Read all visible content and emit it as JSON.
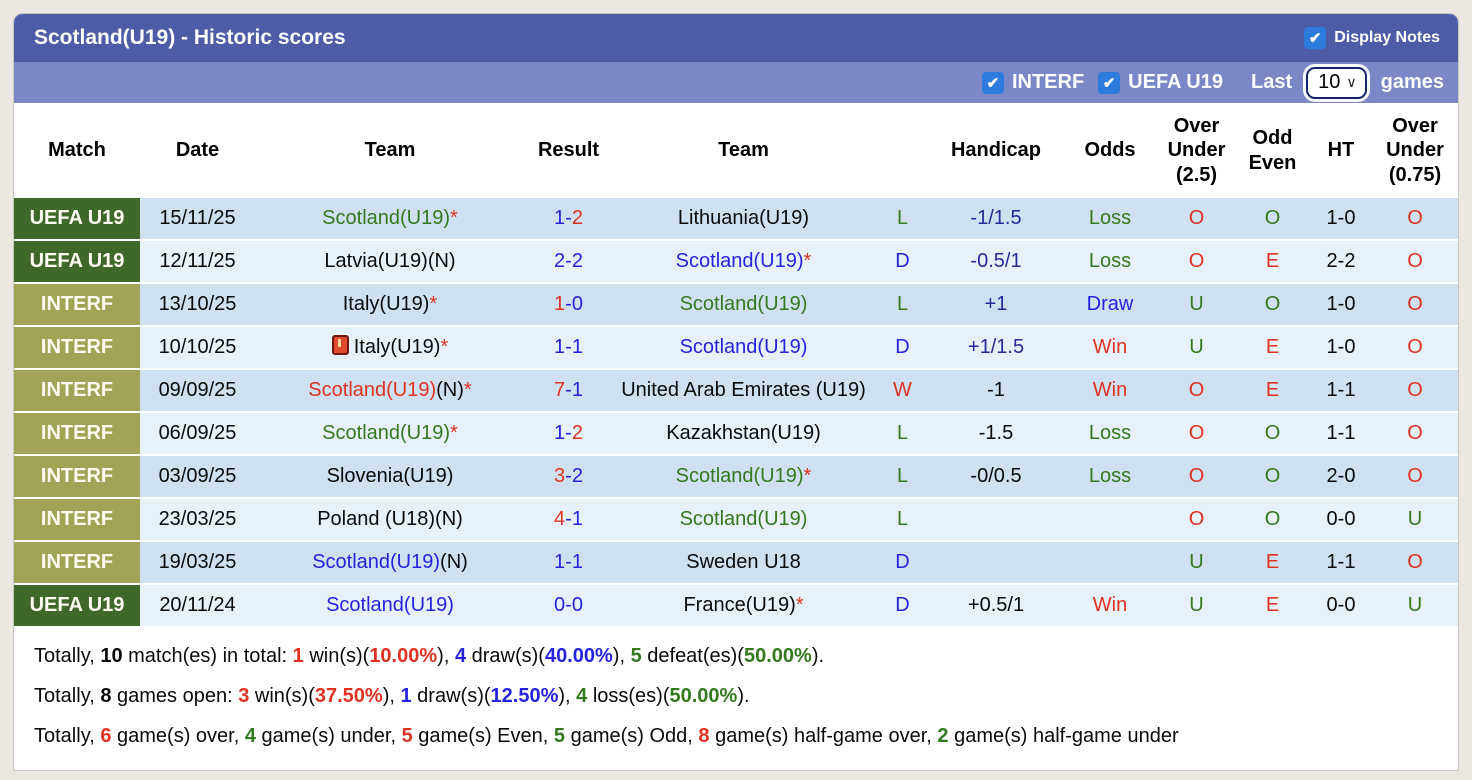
{
  "colors": {
    "header1": "#4d5ca7",
    "header2": "#7b87c6",
    "checkbox": "#2e7bde",
    "badge-uefa": "#3e692a",
    "badge-interf": "#a1a457",
    "stripe-dark": "#cfe1f0",
    "stripe-light": "#e7f1fa",
    "red": "#e03222",
    "green": "#33791e",
    "blue": "#2424dd",
    "navy": "#242a99"
  },
  "titlebar": {
    "title": "Scotland(U19) - Historic scores",
    "display_notes_label": "Display Notes"
  },
  "filterbar": {
    "interf_label": "INTERF",
    "uefa_label": "UEFA U19",
    "last_label": "Last",
    "games_count": "10",
    "games_label": "games"
  },
  "table": {
    "headers": {
      "match": "Match",
      "date": "Date",
      "team_home": "Team",
      "result": "Result",
      "team_away": "Team",
      "handicap": "Handicap",
      "odds": "Odds",
      "ou25": [
        "Over",
        "Under",
        "(2.5)"
      ],
      "oddeven": [
        "Odd",
        "Even"
      ],
      "ht": "HT",
      "ou075": [
        "Over",
        "Under",
        "(0.75)"
      ]
    },
    "rows": [
      {
        "badge": {
          "label": "UEFA U19",
          "variant": "uefa"
        },
        "date": "15/11/25",
        "home": {
          "name": "Scotland(U19)",
          "color": "green",
          "note": "",
          "star": true,
          "icon": ""
        },
        "score": {
          "home": "1",
          "away": "2",
          "home_color": "blue",
          "away_color": "red"
        },
        "away": {
          "name": "Lithuania(U19)",
          "color": "black",
          "note": "",
          "star": false,
          "icon": ""
        },
        "outcome": {
          "text": "L",
          "color": "green"
        },
        "handicap": {
          "text": "-1/1.5",
          "color": "navy"
        },
        "odds": {
          "text": "Loss",
          "color": "green"
        },
        "ou25": {
          "text": "O",
          "color": "red"
        },
        "oddeven": {
          "text": "O",
          "color": "green"
        },
        "ht": "1-0",
        "ou075": {
          "text": "O",
          "color": "red"
        }
      },
      {
        "badge": {
          "label": "UEFA U19",
          "variant": "uefa"
        },
        "date": "12/11/25",
        "home": {
          "name": "Latvia(U19)",
          "color": "black",
          "note": "(N)",
          "star": false,
          "icon": ""
        },
        "score": {
          "home": "2",
          "away": "2",
          "home_color": "blue",
          "away_color": "blue"
        },
        "away": {
          "name": "Scotland(U19)",
          "color": "blue",
          "note": "",
          "star": true,
          "icon": ""
        },
        "outcome": {
          "text": "D",
          "color": "blue"
        },
        "handicap": {
          "text": "-0.5/1",
          "color": "navy"
        },
        "odds": {
          "text": "Loss",
          "color": "green"
        },
        "ou25": {
          "text": "O",
          "color": "red"
        },
        "oddeven": {
          "text": "E",
          "color": "red"
        },
        "ht": "2-2",
        "ou075": {
          "text": "O",
          "color": "red"
        }
      },
      {
        "badge": {
          "label": "INTERF",
          "variant": "interf"
        },
        "date": "13/10/25",
        "home": {
          "name": "Italy(U19)",
          "color": "black",
          "note": "",
          "star": true,
          "icon": ""
        },
        "score": {
          "home": "1",
          "away": "0",
          "home_color": "red",
          "away_color": "blue"
        },
        "away": {
          "name": "Scotland(U19)",
          "color": "green",
          "note": "",
          "star": false,
          "icon": ""
        },
        "outcome": {
          "text": "L",
          "color": "green"
        },
        "handicap": {
          "text": "+1",
          "color": "navy"
        },
        "odds": {
          "text": "Draw",
          "color": "blue"
        },
        "ou25": {
          "text": "U",
          "color": "green"
        },
        "oddeven": {
          "text": "O",
          "color": "green"
        },
        "ht": "1-0",
        "ou075": {
          "text": "O",
          "color": "red"
        }
      },
      {
        "badge": {
          "label": "INTERF",
          "variant": "interf"
        },
        "date": "10/10/25",
        "home": {
          "name": "Italy(U19)",
          "color": "black",
          "note": "",
          "star": true,
          "icon": "red-card"
        },
        "score": {
          "home": "1",
          "away": "1",
          "home_color": "blue",
          "away_color": "blue"
        },
        "away": {
          "name": "Scotland(U19)",
          "color": "blue",
          "note": "",
          "star": false,
          "icon": ""
        },
        "outcome": {
          "text": "D",
          "color": "blue"
        },
        "handicap": {
          "text": "+1/1.5",
          "color": "navy"
        },
        "odds": {
          "text": "Win",
          "color": "red"
        },
        "ou25": {
          "text": "U",
          "color": "green"
        },
        "oddeven": {
          "text": "E",
          "color": "red"
        },
        "ht": "1-0",
        "ou075": {
          "text": "O",
          "color": "red"
        }
      },
      {
        "badge": {
          "label": "INTERF",
          "variant": "interf"
        },
        "date": "09/09/25",
        "home": {
          "name": "Scotland(U19)",
          "color": "red",
          "note": "(N)",
          "star": true,
          "icon": ""
        },
        "score": {
          "home": "7",
          "away": "1",
          "home_color": "red",
          "away_color": "blue"
        },
        "away": {
          "name": "United Arab Emirates (U19)",
          "color": "black",
          "note": "",
          "star": false,
          "icon": ""
        },
        "outcome": {
          "text": "W",
          "color": "red"
        },
        "handicap": {
          "text": "-1",
          "color": "black"
        },
        "odds": {
          "text": "Win",
          "color": "red"
        },
        "ou25": {
          "text": "O",
          "color": "red"
        },
        "oddeven": {
          "text": "E",
          "color": "red"
        },
        "ht": "1-1",
        "ou075": {
          "text": "O",
          "color": "red"
        }
      },
      {
        "badge": {
          "label": "INTERF",
          "variant": "interf"
        },
        "date": "06/09/25",
        "home": {
          "name": "Scotland(U19)",
          "color": "green",
          "note": "",
          "star": true,
          "icon": ""
        },
        "score": {
          "home": "1",
          "away": "2",
          "home_color": "blue",
          "away_color": "red"
        },
        "away": {
          "name": "Kazakhstan(U19)",
          "color": "black",
          "note": "",
          "star": false,
          "icon": ""
        },
        "outcome": {
          "text": "L",
          "color": "green"
        },
        "handicap": {
          "text": "-1.5",
          "color": "black"
        },
        "odds": {
          "text": "Loss",
          "color": "green"
        },
        "ou25": {
          "text": "O",
          "color": "red"
        },
        "oddeven": {
          "text": "O",
          "color": "green"
        },
        "ht": "1-1",
        "ou075": {
          "text": "O",
          "color": "red"
        }
      },
      {
        "badge": {
          "label": "INTERF",
          "variant": "interf"
        },
        "date": "03/09/25",
        "home": {
          "name": "Slovenia(U19)",
          "color": "black",
          "note": "",
          "star": false,
          "icon": ""
        },
        "score": {
          "home": "3",
          "away": "2",
          "home_color": "red",
          "away_color": "blue"
        },
        "away": {
          "name": "Scotland(U19)",
          "color": "green",
          "note": "",
          "star": true,
          "icon": ""
        },
        "outcome": {
          "text": "L",
          "color": "green"
        },
        "handicap": {
          "text": "-0/0.5",
          "color": "black"
        },
        "odds": {
          "text": "Loss",
          "color": "green"
        },
        "ou25": {
          "text": "O",
          "color": "red"
        },
        "oddeven": {
          "text": "O",
          "color": "green"
        },
        "ht": "2-0",
        "ou075": {
          "text": "O",
          "color": "red"
        }
      },
      {
        "badge": {
          "label": "INTERF",
          "variant": "interf"
        },
        "date": "23/03/25",
        "home": {
          "name": "Poland (U18)",
          "color": "black",
          "note": "(N)",
          "star": false,
          "icon": ""
        },
        "score": {
          "home": "4",
          "away": "1",
          "home_color": "red",
          "away_color": "blue"
        },
        "away": {
          "name": "Scotland(U19)",
          "color": "green",
          "note": "",
          "star": false,
          "icon": ""
        },
        "outcome": {
          "text": "L",
          "color": "green"
        },
        "handicap": {
          "text": "",
          "color": "black"
        },
        "odds": {
          "text": "",
          "color": "black"
        },
        "ou25": {
          "text": "O",
          "color": "red"
        },
        "oddeven": {
          "text": "O",
          "color": "green"
        },
        "ht": "0-0",
        "ou075": {
          "text": "U",
          "color": "green"
        }
      },
      {
        "badge": {
          "label": "INTERF",
          "variant": "interf"
        },
        "date": "19/03/25",
        "home": {
          "name": "Scotland(U19)",
          "color": "blue",
          "note": "(N)",
          "star": false,
          "icon": ""
        },
        "score": {
          "home": "1",
          "away": "1",
          "home_color": "blue",
          "away_color": "blue"
        },
        "away": {
          "name": "Sweden U18",
          "color": "black",
          "note": "",
          "star": false,
          "icon": ""
        },
        "outcome": {
          "text": "D",
          "color": "blue"
        },
        "handicap": {
          "text": "",
          "color": "black"
        },
        "odds": {
          "text": "",
          "color": "black"
        },
        "ou25": {
          "text": "U",
          "color": "green"
        },
        "oddeven": {
          "text": "E",
          "color": "red"
        },
        "ht": "1-1",
        "ou075": {
          "text": "O",
          "color": "red"
        }
      },
      {
        "badge": {
          "label": "UEFA U19",
          "variant": "uefa"
        },
        "date": "20/11/24",
        "home": {
          "name": "Scotland(U19)",
          "color": "blue",
          "note": "",
          "star": false,
          "icon": ""
        },
        "score": {
          "home": "0",
          "away": "0",
          "home_color": "blue",
          "away_color": "blue"
        },
        "away": {
          "name": "France(U19)",
          "color": "black",
          "note": "",
          "star": true,
          "icon": ""
        },
        "outcome": {
          "text": "D",
          "color": "blue"
        },
        "handicap": {
          "text": "+0.5/1",
          "color": "black"
        },
        "odds": {
          "text": "Win",
          "color": "red"
        },
        "ou25": {
          "text": "U",
          "color": "green"
        },
        "oddeven": {
          "text": "E",
          "color": "red"
        },
        "ht": "0-0",
        "ou075": {
          "text": "U",
          "color": "green"
        }
      }
    ]
  },
  "summary": {
    "lines": [
      [
        {
          "t": "Totally, "
        },
        {
          "t": "10",
          "b": 1
        },
        {
          "t": " match(es) in total: "
        },
        {
          "t": "1",
          "c": "red",
          "b": 1
        },
        {
          "t": " win(s)("
        },
        {
          "t": "10.00%",
          "c": "red",
          "b": 1
        },
        {
          "t": "), "
        },
        {
          "t": "4",
          "c": "blue",
          "b": 1
        },
        {
          "t": " draw(s)("
        },
        {
          "t": "40.00%",
          "c": "blue",
          "b": 1
        },
        {
          "t": "), "
        },
        {
          "t": "5",
          "c": "green",
          "b": 1
        },
        {
          "t": " defeat(es)("
        },
        {
          "t": "50.00%",
          "c": "green",
          "b": 1
        },
        {
          "t": ")."
        }
      ],
      [
        {
          "t": "Totally, "
        },
        {
          "t": "8",
          "b": 1
        },
        {
          "t": " games open: "
        },
        {
          "t": "3",
          "c": "red",
          "b": 1
        },
        {
          "t": " win(s)("
        },
        {
          "t": "37.50%",
          "c": "red",
          "b": 1
        },
        {
          "t": "), "
        },
        {
          "t": "1",
          "c": "blue",
          "b": 1
        },
        {
          "t": " draw(s)("
        },
        {
          "t": "12.50%",
          "c": "blue",
          "b": 1
        },
        {
          "t": "), "
        },
        {
          "t": "4",
          "c": "green",
          "b": 1
        },
        {
          "t": " loss(es)("
        },
        {
          "t": "50.00%",
          "c": "green",
          "b": 1
        },
        {
          "t": ")."
        }
      ],
      [
        {
          "t": "Totally, "
        },
        {
          "t": "6",
          "c": "red",
          "b": 1
        },
        {
          "t": " game(s) over, "
        },
        {
          "t": "4",
          "c": "green",
          "b": 1
        },
        {
          "t": " game(s) under, "
        },
        {
          "t": "5",
          "c": "red",
          "b": 1
        },
        {
          "t": " game(s) Even, "
        },
        {
          "t": "5",
          "c": "green",
          "b": 1
        },
        {
          "t": " game(s) Odd, "
        },
        {
          "t": "8",
          "c": "red",
          "b": 1
        },
        {
          "t": " game(s) half-game over, "
        },
        {
          "t": "2",
          "c": "green",
          "b": 1
        },
        {
          "t": " game(s) half-game under"
        }
      ]
    ]
  }
}
